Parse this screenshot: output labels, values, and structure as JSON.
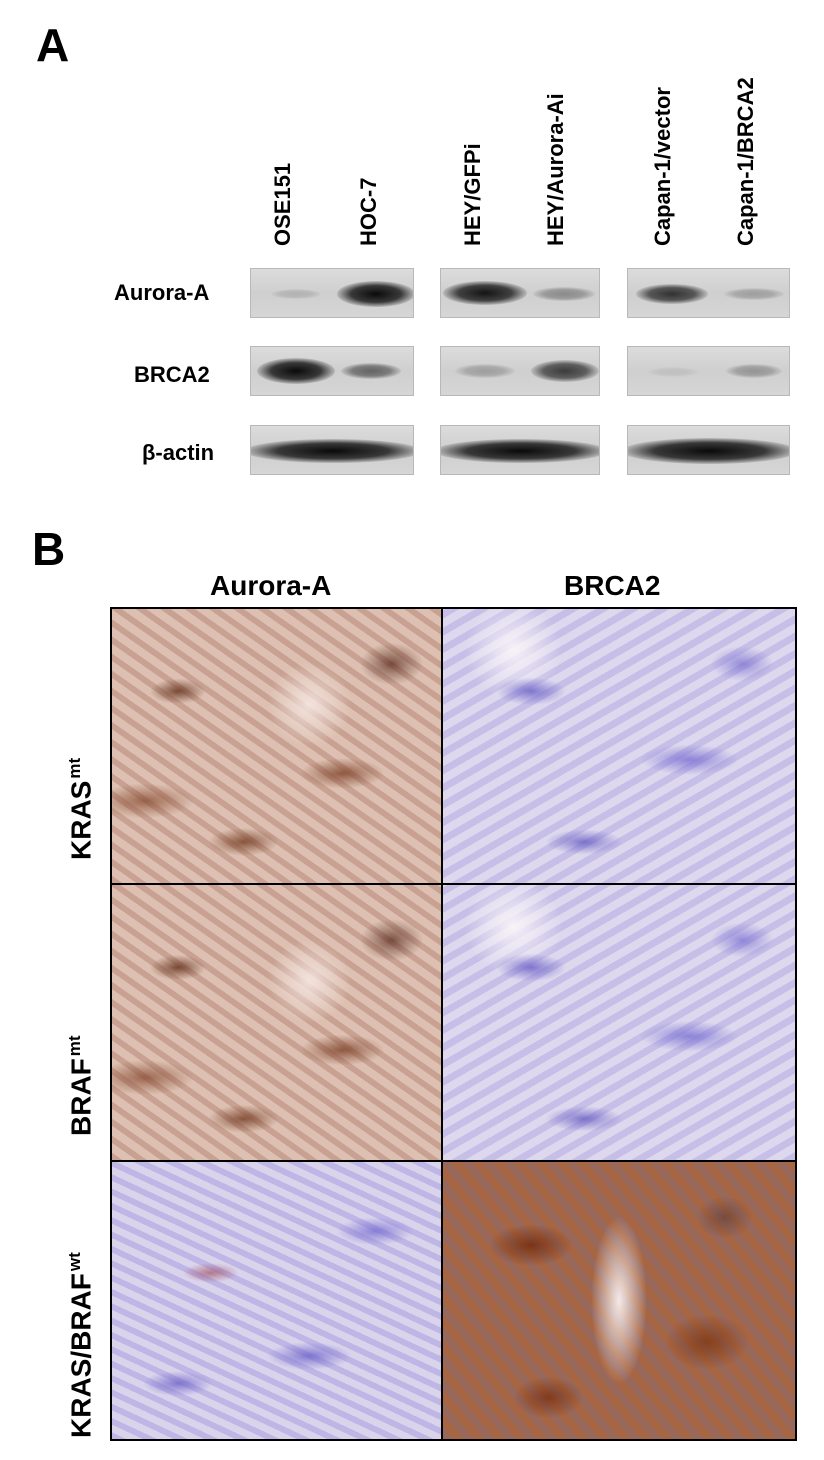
{
  "panel_a": {
    "letter": "A",
    "lanes": [
      "OSE151",
      "HOC-7",
      "HEY/GFPi",
      "HEY/Aurora-Ai",
      "Capan-1/vector",
      "Capan-1/BRCA2"
    ],
    "rows": [
      "Aurora-A",
      "BRCA2",
      "β-actin"
    ]
  },
  "panel_b": {
    "letter": "B",
    "columns": [
      "Aurora-A",
      "BRCA2"
    ],
    "rows": [
      {
        "base": "KRAS",
        "sup": "mt"
      },
      {
        "base": "BRAF",
        "sup": "mt"
      },
      {
        "base": "KRAS/BRAF",
        "sup": "wt"
      }
    ]
  }
}
